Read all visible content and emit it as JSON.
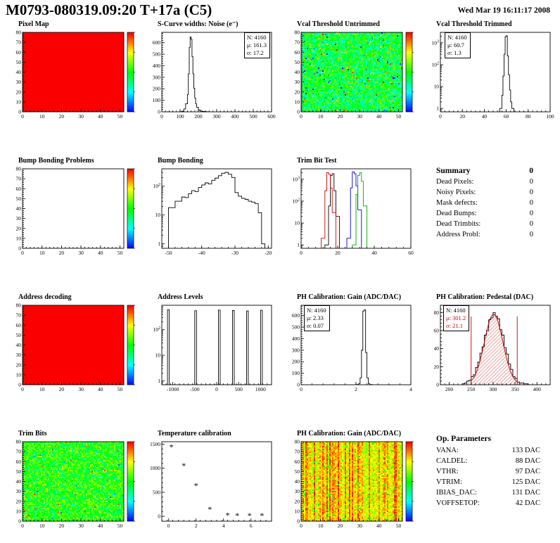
{
  "header": {
    "title": "M0793-080319.09:20 T+17a (C5)",
    "date": "Wed Mar 19 16:11:17 2008"
  },
  "summary": {
    "title": "Summary",
    "total": "0",
    "items": [
      {
        "label": "Dead Pixels:",
        "value": "0"
      },
      {
        "label": "Noisy Pixels:",
        "value": "0"
      },
      {
        "label": "Mask defects:",
        "value": "0"
      },
      {
        "label": "Dead Bumps:",
        "value": "0"
      },
      {
        "label": "Dead Trimbits:",
        "value": "0"
      },
      {
        "label": "Address Probl:",
        "value": "0"
      }
    ]
  },
  "op_parameters": {
    "title": "Op. Parameters",
    "items": [
      {
        "label": "VANA:",
        "value": "133 DAC"
      },
      {
        "label": "CALDEL:",
        "value": "88 DAC"
      },
      {
        "label": "VTHR:",
        "value": "97 DAC"
      },
      {
        "label": "VTRIM:",
        "value": "125 DAC"
      },
      {
        "label": "IBIAS_DAC:",
        "value": "131 DAC"
      },
      {
        "label": "VOFFSETOP:",
        "value": "42 DAC"
      }
    ]
  },
  "chart_data": [
    {
      "id": "pixel-map",
      "title": "Pixel Map",
      "type": "heatmap",
      "style": "uniform",
      "color": "#fa0000",
      "xlim": [
        0,
        52
      ],
      "ylim": [
        0,
        80
      ],
      "xticks": [
        0,
        10,
        20,
        30,
        40,
        50
      ],
      "yticks": [
        0,
        10,
        20,
        30,
        40,
        50,
        60,
        70,
        80
      ]
    },
    {
      "id": "scurve-noise",
      "title": "S-Curve widths: Noise (e⁻)",
      "type": "hist",
      "color": "#000000",
      "xlim": [
        0,
        600
      ],
      "ylim": [
        0,
        690
      ],
      "xticks": [
        0,
        100,
        200,
        300,
        400,
        500,
        600
      ],
      "yticks": [
        0,
        100,
        200,
        300,
        400,
        500,
        600
      ],
      "edges": [
        100,
        110,
        120,
        130,
        140,
        145,
        150,
        155,
        160,
        165,
        170,
        175,
        180,
        185,
        190,
        200,
        210,
        220,
        240,
        260
      ],
      "counts": [
        2,
        6,
        25,
        70,
        150,
        330,
        560,
        650,
        630,
        480,
        330,
        205,
        120,
        70,
        40,
        16,
        7,
        3,
        1
      ],
      "stats_lines": [
        "N: 4160",
        "μ: 161.3",
        "σ: 17.2"
      ]
    },
    {
      "id": "vcal-threshold-untrimmed",
      "title": "Vcal Threshold Untrimmed",
      "type": "heatmap",
      "style": "noise",
      "seed": 11,
      "noise": {
        "base": 0.45,
        "spread": 0.35,
        "outliers": 0.07,
        "out_base": 0.0,
        "out_spread": 1.0
      },
      "xlim": [
        0,
        52
      ],
      "ylim": [
        0,
        80
      ],
      "xticks": [
        0,
        10,
        20,
        30,
        40,
        50
      ],
      "yticks": [
        0,
        10,
        20,
        30,
        40,
        50,
        60,
        70,
        80
      ]
    },
    {
      "id": "vcal-threshold-trimmed",
      "title": "Vcal Threshold Trimmed",
      "type": "hist",
      "yscale": "log",
      "color": "#000000",
      "xlim": [
        0,
        100
      ],
      "ylim": [
        0.7,
        3000
      ],
      "xticks": [
        0,
        20,
        40,
        60,
        80,
        100
      ],
      "yticks": [
        [
          1,
          "1"
        ],
        [
          10,
          "10"
        ],
        [
          100,
          "10^2"
        ],
        [
          1000,
          "10^3"
        ]
      ],
      "edges": [
        54,
        56,
        57,
        58,
        59,
        60,
        61,
        62,
        63,
        64,
        65,
        67
      ],
      "counts": [
        1,
        4,
        30,
        300,
        1900,
        2100,
        250,
        35,
        7,
        2,
        1
      ],
      "stats_lines": [
        "N: 4160",
        "μ: 60.7",
        "σ:  1.3"
      ]
    },
    {
      "id": "bump-bonding-problems",
      "title": "Bump Bonding Problems",
      "type": "heatmap",
      "style": "empty",
      "xlim": [
        0,
        52
      ],
      "ylim": [
        0,
        80
      ],
      "xticks": [
        0,
        10,
        20,
        30,
        40,
        50
      ],
      "yticks": [
        0,
        10,
        20,
        30,
        40,
        50,
        60,
        70,
        80
      ]
    },
    {
      "id": "bump-bonding",
      "title": "Bump Bonding",
      "type": "hist",
      "yscale": "log",
      "color": "#000000",
      "xlim": [
        -52,
        -19
      ],
      "ylim": [
        0.7,
        400
      ],
      "xticks": [
        -50,
        -40,
        -30,
        -20
      ],
      "yticks": [
        [
          1,
          "1"
        ],
        [
          10,
          "10"
        ],
        [
          100,
          "10^2"
        ]
      ],
      "edges": [
        -50,
        -48,
        -46,
        -45,
        -44,
        -43,
        -42,
        -41,
        -40,
        -39,
        -38,
        -37,
        -36,
        -35,
        -34,
        -33,
        -32,
        -31,
        -30,
        -29,
        -28,
        -27,
        -26,
        -25,
        -24,
        -23,
        -22,
        -21
      ],
      "counts": [
        18,
        30,
        42,
        40,
        55,
        70,
        65,
        90,
        110,
        130,
        120,
        160,
        190,
        230,
        280,
        300,
        260,
        200,
        60,
        45,
        38,
        35,
        30,
        28,
        25,
        12,
        1
      ]
    },
    {
      "id": "trim-bit-test",
      "title": "Trim Bit Test",
      "type": "hist-multi",
      "yscale": "log",
      "xlim": [
        0,
        60
      ],
      "ylim": [
        0.7,
        3000
      ],
      "xticks": [
        0,
        20,
        40,
        60
      ],
      "yticks": [
        [
          1,
          "1"
        ],
        [
          10,
          "10"
        ],
        [
          100,
          "10^2"
        ],
        [
          1000,
          "10^3"
        ]
      ],
      "series": [
        {
          "name": "black",
          "color": "#000000",
          "edges": [
            13,
            15,
            16,
            17,
            18,
            19,
            21
          ],
          "counts": [
            1,
            60,
            1500,
            1800,
            300,
            20
          ]
        },
        {
          "name": "red",
          "color": "#cc0000",
          "edges": [
            11,
            13,
            14,
            15,
            16,
            17,
            19
          ],
          "counts": [
            2,
            300,
            2000,
            1700,
            400,
            30
          ]
        },
        {
          "name": "blue",
          "color": "#0000cc",
          "edges": [
            25,
            27,
            28,
            29,
            30,
            31,
            33
          ],
          "counts": [
            2,
            400,
            2200,
            1800,
            500,
            40
          ]
        },
        {
          "name": "green",
          "color": "#00aa00",
          "edges": [
            28,
            30,
            31,
            32,
            33,
            34,
            36
          ],
          "counts": [
            1,
            200,
            1500,
            2000,
            800,
            60
          ]
        }
      ]
    },
    {
      "id": "address-decoding",
      "title": "Address decoding",
      "type": "heatmap",
      "style": "uniform",
      "color": "#fa0000",
      "xlim": [
        0,
        52
      ],
      "ylim": [
        0,
        80
      ],
      "xticks": [
        0,
        10,
        20,
        30,
        40,
        50
      ],
      "yticks": [
        0,
        10,
        20,
        30,
        40,
        50,
        60,
        70,
        80
      ]
    },
    {
      "id": "address-levels",
      "title": "Address Levels",
      "type": "hist",
      "yscale": "log",
      "color": "#000000",
      "xlim": [
        -1250,
        1250
      ],
      "ylim": [
        0.7,
        900
      ],
      "xticks": [
        -1000,
        -500,
        0,
        500,
        1000
      ],
      "yticks": [
        [
          1,
          "1"
        ],
        [
          10,
          "10"
        ],
        [
          100,
          "10^2"
        ]
      ],
      "edges": [
        -1250,
        -1120,
        -1080,
        -500,
        -460,
        40,
        80,
        360,
        400,
        680,
        720,
        1000,
        1040,
        1250
      ],
      "counts": [
        0,
        600,
        0,
        550,
        0,
        580,
        0,
        560,
        0,
        540,
        0,
        570,
        0
      ]
    },
    {
      "id": "ph-calibration-gain-hist",
      "title": "PH Calibration: Gain (ADC/DAC)",
      "type": "hist",
      "color": "#000000",
      "xlim": [
        0,
        4
      ],
      "ylim": [
        0,
        690
      ],
      "xticks": [
        0,
        2,
        4
      ],
      "yticks": [
        0,
        100,
        200,
        300,
        400,
        500,
        600
      ],
      "edges": [
        2,
        2.1,
        2.15,
        2.2,
        2.25,
        2.3,
        2.35,
        2.4,
        2.45,
        2.5,
        2.6
      ],
      "counts": [
        2,
        10,
        60,
        300,
        640,
        650,
        280,
        60,
        10,
        2
      ],
      "stats_lines": [
        "N: 4160",
        "μ: 2.33",
        "σ: 0.07"
      ]
    },
    {
      "id": "ph-calibration-pedestal",
      "title": "PH Calibration: Pedestal (DAC)",
      "type": "hist",
      "color": "#000000",
      "fill": "hatch",
      "xlim": [
        180,
        430
      ],
      "ylim": [
        0,
        88
      ],
      "xticks": [
        200,
        250,
        300,
        350,
        400
      ],
      "yticks": [
        0,
        20,
        40,
        60,
        80
      ],
      "edges": [
        230,
        235,
        240,
        245,
        250,
        255,
        260,
        265,
        270,
        275,
        280,
        285,
        290,
        295,
        300,
        305,
        310,
        315,
        320,
        325,
        330,
        335,
        340,
        345,
        350,
        355,
        360,
        365,
        370,
        375,
        380,
        385
      ],
      "counts": [
        1,
        2,
        4,
        5,
        9,
        11,
        19,
        25,
        35,
        42,
        55,
        60,
        72,
        74,
        80,
        76,
        73,
        61,
        55,
        41,
        34,
        23,
        17,
        9,
        7,
        3,
        2,
        2,
        1,
        1,
        0
      ],
      "fit": {
        "mu": 301.2,
        "sigma": 21.1,
        "amplitude": 78,
        "range": [
          250,
          355
        ]
      },
      "stats_lines": [
        "N: 4160",
        "μ: 301.2",
        "σ: 21.1"
      ]
    },
    {
      "id": "trim-bits",
      "title": "Trim Bits",
      "type": "heatmap",
      "style": "noise",
      "seed": 23,
      "noise": {
        "base": 0.52,
        "spread": 0.3,
        "outliers": 0.05,
        "out_base": 0.1,
        "out_spread": 0.85
      },
      "xlim": [
        0,
        52
      ],
      "ylim": [
        0,
        80
      ],
      "xticks": [
        0,
        10,
        20,
        30,
        40,
        50
      ],
      "yticks": [
        0,
        10,
        20,
        30,
        40,
        50,
        60,
        70,
        80
      ]
    },
    {
      "id": "temperature-calibration",
      "title": "Temperature calibration",
      "type": "scatter",
      "marker": "*",
      "xlim": [
        -0.5,
        7.5
      ],
      "ylim": [
        -100,
        1550
      ],
      "xticks": [
        0,
        2,
        4,
        6
      ],
      "yticks": [
        0,
        500,
        1000,
        1500
      ],
      "points": [
        [
          0.2,
          1440
        ],
        [
          1.1,
          1050
        ],
        [
          2.0,
          640
        ],
        [
          3.0,
          150
        ],
        [
          4.3,
          25
        ],
        [
          5.0,
          18
        ],
        [
          5.9,
          18
        ],
        [
          6.8,
          18
        ]
      ]
    },
    {
      "id": "ph-calibration-gain-map",
      "title": "PH Calibration: Gain (ADC/DAC)",
      "type": "heatmap",
      "style": "noise",
      "seed": 5,
      "noise": {
        "base": 0.8,
        "spread": 0.18,
        "outliers": 0.05,
        "out_base": 0.45,
        "out_spread": 0.2,
        "column": true,
        "colspread": 0.28
      },
      "xlim": [
        0,
        52
      ],
      "ylim": [
        0,
        80
      ],
      "xticks": [
        0,
        10,
        20,
        30,
        40,
        50
      ],
      "yticks": [
        0,
        10,
        20,
        30,
        40,
        50,
        60,
        70,
        80
      ]
    }
  ]
}
